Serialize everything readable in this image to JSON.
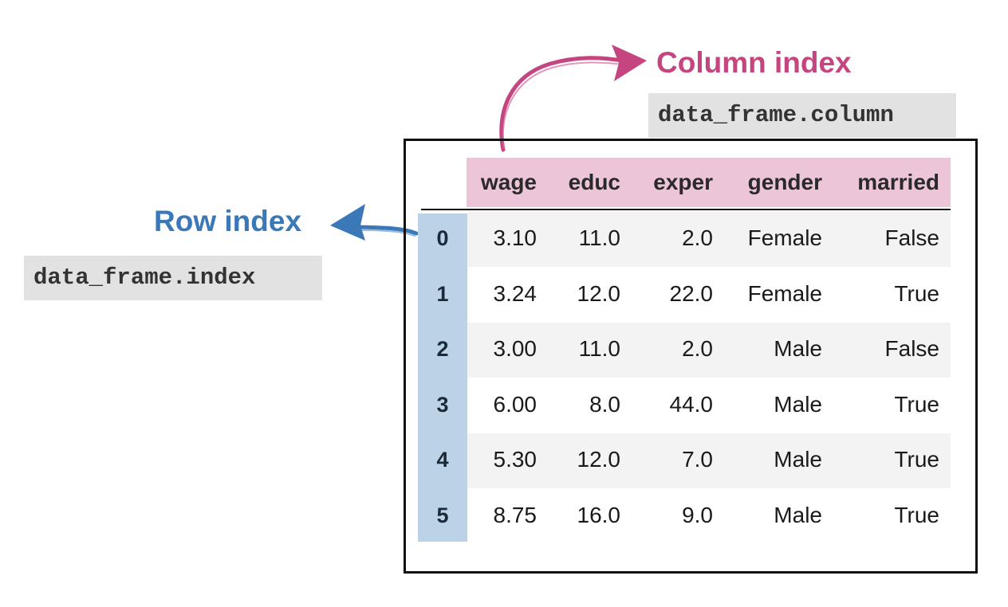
{
  "row_index": {
    "label": "Row index",
    "code": "data_frame.index",
    "color": "#3b78b8"
  },
  "column_index": {
    "label": "Column index",
    "code": "data_frame.column",
    "color": "#c4457f"
  },
  "colors": {
    "header_band": "#ecc5d8",
    "index_band": "#bcd2e6",
    "striped_row": "#f3f3f3",
    "frame_border": "#111111"
  },
  "table": {
    "columns": [
      "wage",
      "educ",
      "exper",
      "gender",
      "married"
    ],
    "index": [
      "0",
      "1",
      "2",
      "3",
      "4",
      "5"
    ],
    "rows": [
      [
        "3.10",
        "11.0",
        "2.0",
        "Female",
        "False"
      ],
      [
        "3.24",
        "12.0",
        "22.0",
        "Female",
        "True"
      ],
      [
        "3.00",
        "11.0",
        "2.0",
        "Male",
        "False"
      ],
      [
        "6.00",
        "8.0",
        "44.0",
        "Male",
        "True"
      ],
      [
        "5.30",
        "12.0",
        "7.0",
        "Male",
        "True"
      ],
      [
        "8.75",
        "16.0",
        "9.0",
        "Male",
        "True"
      ]
    ]
  }
}
